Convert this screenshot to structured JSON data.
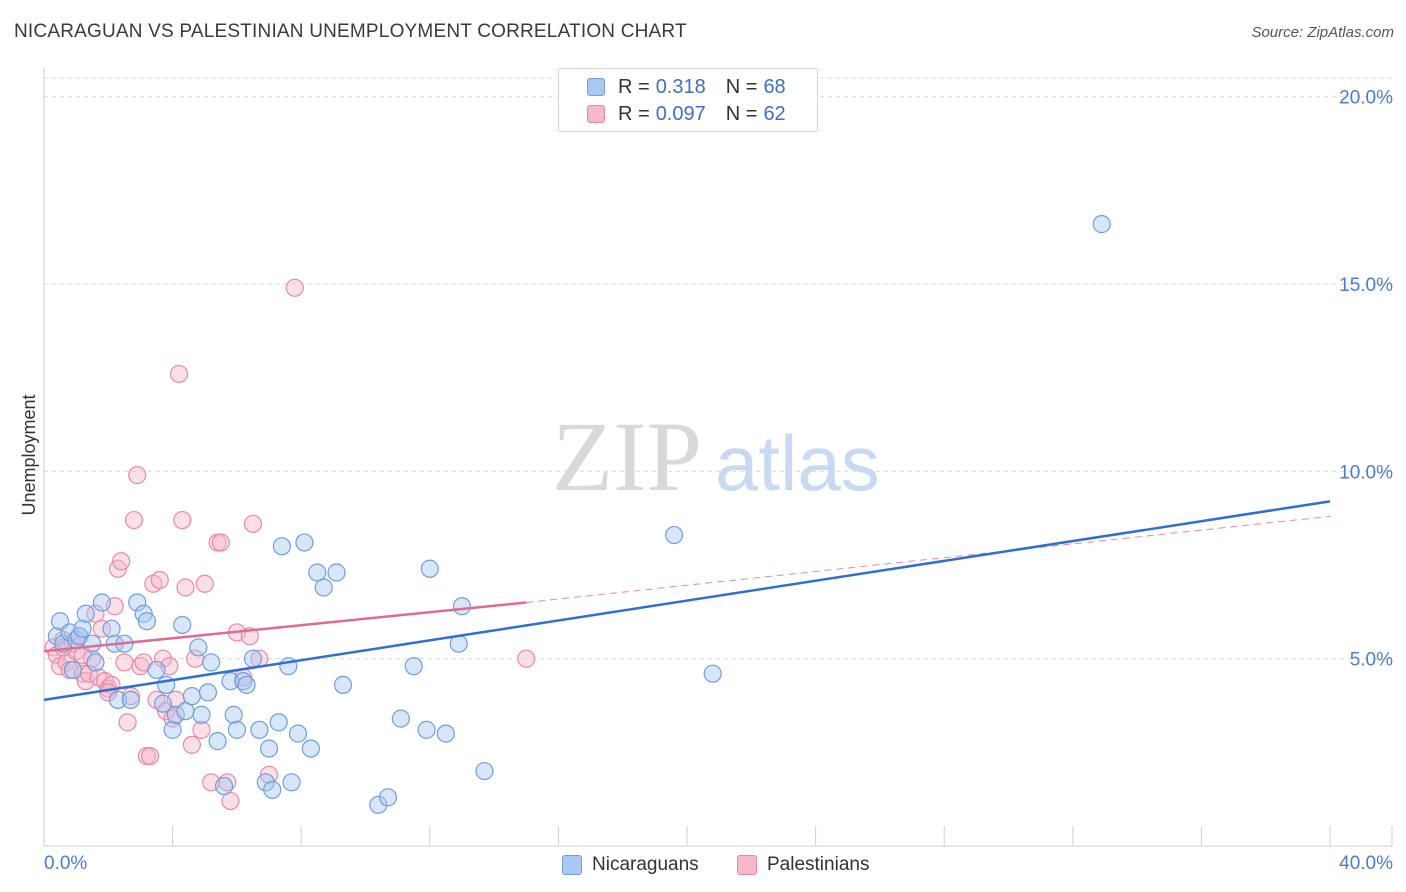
{
  "title": "NICARAGUAN VS PALESTINIAN UNEMPLOYMENT CORRELATION CHART",
  "source": "Source: ZipAtlas.com",
  "watermark": {
    "zip": "ZIP",
    "atlas": "atlas"
  },
  "legend": {
    "rows": [
      {
        "r_label": "R =",
        "r_value": "0.318",
        "n_label": "N =",
        "n_value": "68"
      },
      {
        "r_label": "R =",
        "r_value": "0.097",
        "n_label": "N =",
        "n_value": "62"
      }
    ]
  },
  "colors": {
    "blue_fill": "#a9c8f2",
    "blue_stroke": "#6f9fdc",
    "blue_line": "#2f6fd0",
    "pink_fill": "#f7b8ca",
    "pink_stroke": "#e88aa7",
    "pink_line": "#e06a92"
  },
  "chart_data": {
    "type": "scatter",
    "title": "NICARAGUAN VS PALESTINIAN UNEMPLOYMENT CORRELATION CHART",
    "xlabel": "",
    "ylabel": "Unemployment",
    "xlim": [
      0,
      40
    ],
    "ylim": [
      0,
      20.5
    ],
    "x_tick_labels": [
      "0.0%",
      "40.0%"
    ],
    "y_ticks": [
      5,
      10,
      15,
      20
    ],
    "y_tick_labels": [
      "5.0%",
      "10.0%",
      "15.0%",
      "20.0%"
    ],
    "legend_position": "bottom",
    "series": [
      {
        "name": "Nicaraguans",
        "r": 0.318,
        "n": 68,
        "trend": {
          "x0": 0,
          "y0": 3.9,
          "x1": 40,
          "y1": 9.2
        },
        "points": [
          [
            0.4,
            5.6
          ],
          [
            0.5,
            6.0
          ],
          [
            0.6,
            5.4
          ],
          [
            0.8,
            5.7
          ],
          [
            1.0,
            5.5
          ],
          [
            1.1,
            5.6
          ],
          [
            1.2,
            5.8
          ],
          [
            1.3,
            6.2
          ],
          [
            1.5,
            5.4
          ],
          [
            1.6,
            4.9
          ],
          [
            1.8,
            6.5
          ],
          [
            2.1,
            5.8
          ],
          [
            2.2,
            5.4
          ],
          [
            2.3,
            3.9
          ],
          [
            2.5,
            5.4
          ],
          [
            2.7,
            3.9
          ],
          [
            2.9,
            6.5
          ],
          [
            3.1,
            6.2
          ],
          [
            3.2,
            6.0
          ],
          [
            3.5,
            4.7
          ],
          [
            3.7,
            3.8
          ],
          [
            3.8,
            4.3
          ],
          [
            4.0,
            3.1
          ],
          [
            4.1,
            3.5
          ],
          [
            4.3,
            5.9
          ],
          [
            4.4,
            3.6
          ],
          [
            4.6,
            4.0
          ],
          [
            4.8,
            5.3
          ],
          [
            4.9,
            3.5
          ],
          [
            5.1,
            4.1
          ],
          [
            5.2,
            4.9
          ],
          [
            5.4,
            2.8
          ],
          [
            5.6,
            1.6
          ],
          [
            5.8,
            4.4
          ],
          [
            5.9,
            3.5
          ],
          [
            6.0,
            3.1
          ],
          [
            6.2,
            4.4
          ],
          [
            6.3,
            4.3
          ],
          [
            6.5,
            5.0
          ],
          [
            6.7,
            3.1
          ],
          [
            6.9,
            1.7
          ],
          [
            7.0,
            2.6
          ],
          [
            7.1,
            1.5
          ],
          [
            7.3,
            3.3
          ],
          [
            7.4,
            8.0
          ],
          [
            7.6,
            4.8
          ],
          [
            7.7,
            1.7
          ],
          [
            7.9,
            3.0
          ],
          [
            8.1,
            8.1
          ],
          [
            8.3,
            2.6
          ],
          [
            8.5,
            7.3
          ],
          [
            8.7,
            6.9
          ],
          [
            9.1,
            7.3
          ],
          [
            9.3,
            4.3
          ],
          [
            10.4,
            1.1
          ],
          [
            10.7,
            1.3
          ],
          [
            11.1,
            3.4
          ],
          [
            11.5,
            4.8
          ],
          [
            11.9,
            3.1
          ],
          [
            12.0,
            7.4
          ],
          [
            12.5,
            3.0
          ],
          [
            12.9,
            5.4
          ],
          [
            13.0,
            6.4
          ],
          [
            13.7,
            2.0
          ],
          [
            19.6,
            8.3
          ],
          [
            20.8,
            4.6
          ],
          [
            32.9,
            16.6
          ],
          [
            0.9,
            4.7
          ]
        ]
      },
      {
        "name": "Palestinians",
        "r": 0.097,
        "n": 62,
        "trend": {
          "x0": 0,
          "y0": 5.2,
          "x1": 15.0,
          "y1": 6.5,
          "dash_x1": 40,
          "dash_y1": 8.8
        },
        "points": [
          [
            0.3,
            5.3
          ],
          [
            0.4,
            5.1
          ],
          [
            0.5,
            4.8
          ],
          [
            0.6,
            5.5
          ],
          [
            0.7,
            4.9
          ],
          [
            0.8,
            4.7
          ],
          [
            0.9,
            5.4
          ],
          [
            1.0,
            5.2
          ],
          [
            1.1,
            5.6
          ],
          [
            1.2,
            4.6
          ],
          [
            1.3,
            4.4
          ],
          [
            1.4,
            4.6
          ],
          [
            1.5,
            5.0
          ],
          [
            1.6,
            6.2
          ],
          [
            1.7,
            4.5
          ],
          [
            1.8,
            5.8
          ],
          [
            1.9,
            4.4
          ],
          [
            2.0,
            4.2
          ],
          [
            2.1,
            4.3
          ],
          [
            2.2,
            6.4
          ],
          [
            2.3,
            7.4
          ],
          [
            2.4,
            7.6
          ],
          [
            2.5,
            4.9
          ],
          [
            2.6,
            3.3
          ],
          [
            2.7,
            4.0
          ],
          [
            2.8,
            8.7
          ],
          [
            2.9,
            9.9
          ],
          [
            3.0,
            4.8
          ],
          [
            3.1,
            4.9
          ],
          [
            3.2,
            2.4
          ],
          [
            3.3,
            2.4
          ],
          [
            3.4,
            7.0
          ],
          [
            3.5,
            3.9
          ],
          [
            3.6,
            7.1
          ],
          [
            3.7,
            5.0
          ],
          [
            3.8,
            3.6
          ],
          [
            3.9,
            4.8
          ],
          [
            4.0,
            3.4
          ],
          [
            4.1,
            3.9
          ],
          [
            4.2,
            12.6
          ],
          [
            4.3,
            8.7
          ],
          [
            4.4,
            6.9
          ],
          [
            4.6,
            2.7
          ],
          [
            4.7,
            5.0
          ],
          [
            4.9,
            3.1
          ],
          [
            5.0,
            7.0
          ],
          [
            5.2,
            1.7
          ],
          [
            5.4,
            8.1
          ],
          [
            5.5,
            8.1
          ],
          [
            5.7,
            1.7
          ],
          [
            5.8,
            1.2
          ],
          [
            6.0,
            5.7
          ],
          [
            6.2,
            4.5
          ],
          [
            6.4,
            5.6
          ],
          [
            6.5,
            8.6
          ],
          [
            6.7,
            5.0
          ],
          [
            7.0,
            1.9
          ],
          [
            7.8,
            14.9
          ],
          [
            15.0,
            5.0
          ],
          [
            1.2,
            5.1
          ],
          [
            0.6,
            5.3
          ],
          [
            2.0,
            4.1
          ]
        ]
      }
    ]
  }
}
